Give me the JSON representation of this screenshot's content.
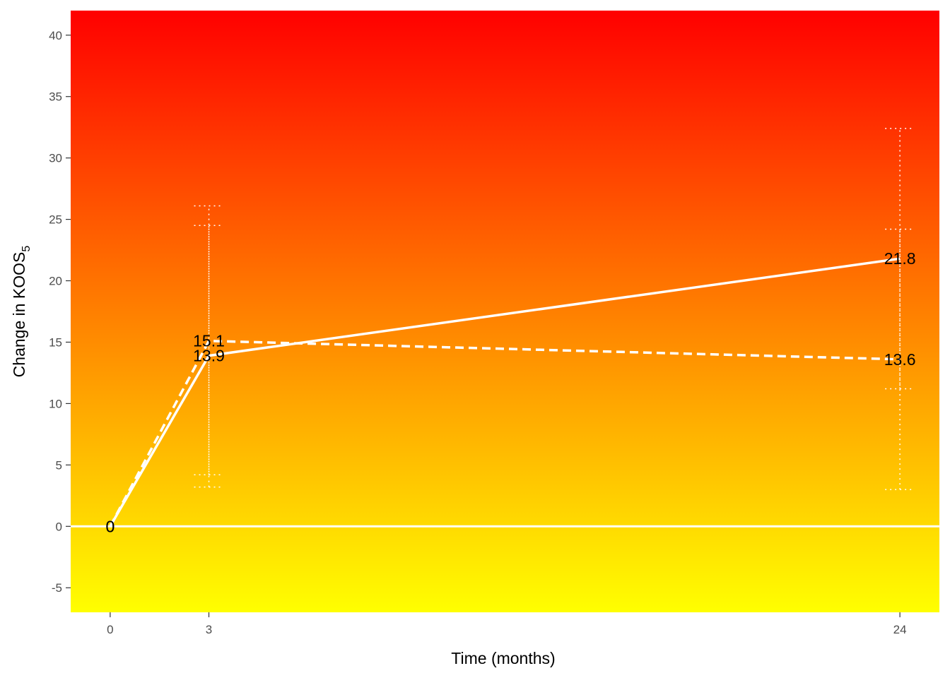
{
  "chart_data": {
    "type": "line",
    "xlabel": "Time (months)",
    "ylabel_main": "Change in KOOS",
    "ylabel_sub": "5",
    "xlim": [
      -1.2,
      25.2
    ],
    "ylim": [
      -7,
      42
    ],
    "x_ticks": [
      0,
      3,
      24
    ],
    "y_ticks": [
      -5,
      0,
      5,
      10,
      15,
      20,
      25,
      30,
      35,
      40
    ],
    "background_gradient": {
      "top": "#ff0000",
      "bottom": "#ffff00"
    },
    "reference_line_y": 0,
    "grid": false,
    "series": [
      {
        "style": "solid",
        "x": [
          0,
          3,
          24
        ],
        "y": [
          0,
          13.9,
          21.8
        ],
        "labels": [
          "0",
          "13.9",
          "21.8"
        ],
        "error_bars": [
          {
            "x": 3,
            "low": 4.2,
            "high": 24.5
          },
          {
            "x": 24,
            "low": 11.2,
            "high": 32.4
          }
        ]
      },
      {
        "style": "dashed",
        "x": [
          0,
          3,
          24
        ],
        "y": [
          0,
          15.1,
          13.6
        ],
        "labels": [
          "0",
          "15.1",
          "13.6"
        ],
        "error_bars": [
          {
            "x": 3,
            "low": 3.2,
            "high": 26.1
          },
          {
            "x": 24,
            "low": 3.0,
            "high": 24.2
          }
        ]
      }
    ]
  }
}
